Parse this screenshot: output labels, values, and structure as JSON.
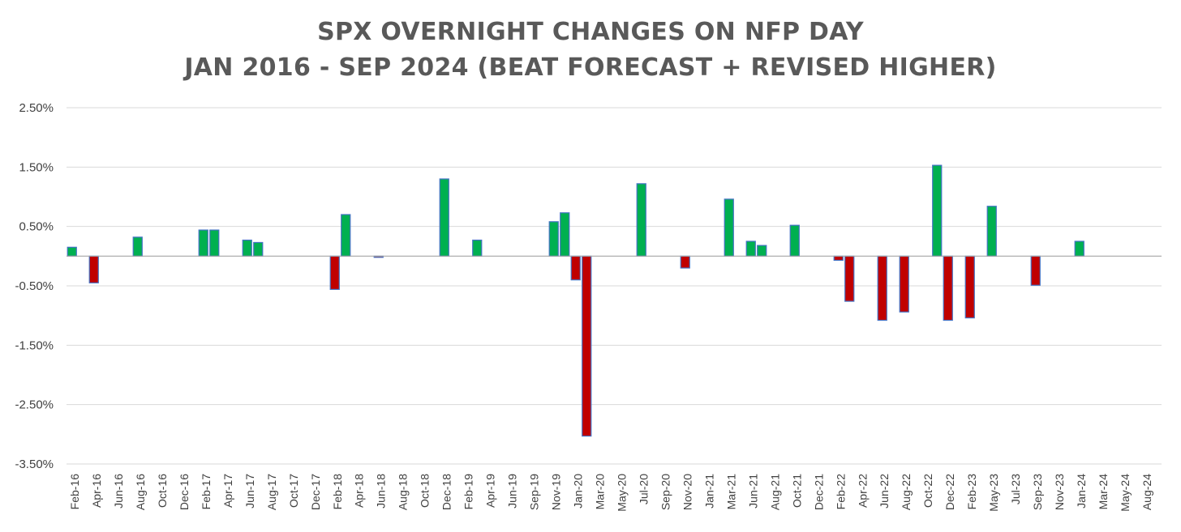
{
  "chart_data": {
    "type": "bar",
    "title": "SPX OVERNIGHT CHANGES ON NFP DAY",
    "subtitle": "JAN 2016 - SEP 2024 (BEAT FORECAST + REVISED HIGHER)",
    "xlabel": "",
    "ylabel": "",
    "ylim": [
      -3.5,
      2.5
    ],
    "yticks": [
      "2.50%",
      "1.50%",
      "0.50%",
      "-0.50%",
      "-1.50%",
      "-2.50%",
      "-3.50%"
    ],
    "ytick_values": [
      2.5,
      1.5,
      0.5,
      -0.5,
      -1.5,
      -2.5,
      -3.5
    ],
    "x_tick_labels": [
      "Feb-16",
      "Apr-16",
      "Jun-16",
      "Aug-16",
      "Oct-16",
      "Dec-16",
      "Feb-17",
      "Apr-17",
      "Jun-17",
      "Aug-17",
      "Oct-17",
      "Dec-17",
      "Feb-18",
      "Apr-18",
      "Jun-18",
      "Aug-18",
      "Oct-18",
      "Dec-18",
      "Feb-19",
      "Apr-19",
      "Jun-19",
      "Sep-19",
      "Nov-19",
      "Jan-20",
      "Mar-20",
      "May-20",
      "Jul-20",
      "Sep-20",
      "Nov-20",
      "Jan-21",
      "Mar-21",
      "Jun-21",
      "Aug-21",
      "Oct-21",
      "Dec-21",
      "Feb-22",
      "Apr-22",
      "Jun-22",
      "Aug-22",
      "Oct-22",
      "Dec-22",
      "Feb-23",
      "May-23",
      "Jul-23",
      "Sep-23",
      "Nov-23",
      "Jan-24",
      "Mar-24",
      "May-24",
      "Aug-24"
    ],
    "categories": [
      "Feb-16",
      "Mar-16",
      "Apr-16",
      "May-16",
      "Jun-16",
      "Jul-16",
      "Aug-16",
      "Sep-16",
      "Oct-16",
      "Nov-16",
      "Dec-16",
      "Jan-17",
      "Feb-17",
      "Mar-17",
      "Apr-17",
      "May-17",
      "Jun-17",
      "Jul-17",
      "Aug-17",
      "Sep-17",
      "Oct-17",
      "Nov-17",
      "Dec-17",
      "Jan-18",
      "Feb-18",
      "Mar-18",
      "Apr-18",
      "May-18",
      "Jun-18",
      "Jul-18",
      "Aug-18",
      "Sep-18",
      "Oct-18",
      "Nov-18",
      "Dec-18",
      "Jan-19",
      "Feb-19",
      "Mar-19",
      "Apr-19",
      "May-19",
      "Jun-19",
      "Jul-19",
      "Sep-19",
      "Oct-19",
      "Nov-19",
      "Dec-19",
      "Jan-20",
      "Feb-20",
      "Mar-20",
      "Apr-20",
      "May-20",
      "Jun-20",
      "Jul-20",
      "Aug-20",
      "Sep-20",
      "Oct-20",
      "Nov-20",
      "Dec-20",
      "Jan-21",
      "Feb-21",
      "Mar-21",
      "May-21",
      "Jun-21",
      "Jul-21",
      "Aug-21",
      "Sep-21",
      "Oct-21",
      "Nov-21",
      "Dec-21",
      "Jan-22",
      "Feb-22",
      "Mar-22",
      "Apr-22",
      "May-22",
      "Jun-22",
      "Jul-22",
      "Aug-22",
      "Sep-22",
      "Oct-22",
      "Nov-22",
      "Dec-22",
      "Jan-23",
      "Feb-23",
      "Apr-23",
      "May-23",
      "Jun-23",
      "Jul-23",
      "Aug-23",
      "Sep-23",
      "Oct-23",
      "Nov-23",
      "Dec-23",
      "Jan-24",
      "Feb-24",
      "Mar-24",
      "Apr-24",
      "May-24",
      "Jun-24",
      "Aug-24",
      "Sep-24"
    ],
    "series": [
      {
        "values": [
          0.15,
          0,
          -0.45,
          0,
          0,
          0,
          0.32,
          0,
          0,
          0,
          0,
          0,
          0.44,
          0.44,
          0,
          0,
          0.27,
          0.23,
          0,
          0,
          0,
          0,
          0,
          0,
          -0.56,
          0.7,
          0,
          0,
          -0.02,
          0,
          0,
          0,
          0,
          0,
          1.3,
          0,
          0,
          0.27,
          0,
          0,
          0,
          0,
          0,
          0,
          0.58,
          0.73,
          -0.4,
          -3.03,
          0,
          0,
          0,
          0,
          1.22,
          0,
          0,
          0,
          -0.2,
          0,
          0,
          0,
          0.96,
          0,
          0.25,
          0.18,
          0,
          0,
          0.52,
          0,
          0,
          0,
          -0.07,
          -0.76,
          0,
          0,
          -1.08,
          0,
          -0.94,
          0,
          0,
          1.53,
          -1.08,
          0,
          -1.04,
          0,
          0.84,
          0,
          0,
          0,
          -0.49,
          0,
          0,
          0,
          0.25,
          0,
          0,
          0,
          0,
          0,
          0,
          0
        ]
      }
    ],
    "colors": {
      "positive": "#00B050",
      "negative": "#C00000",
      "bar_outline": "#4472C4",
      "grid": "#D9D9D9",
      "axis": "#A6A6A6",
      "title": "#595959"
    },
    "grid": true,
    "legend": "none"
  }
}
